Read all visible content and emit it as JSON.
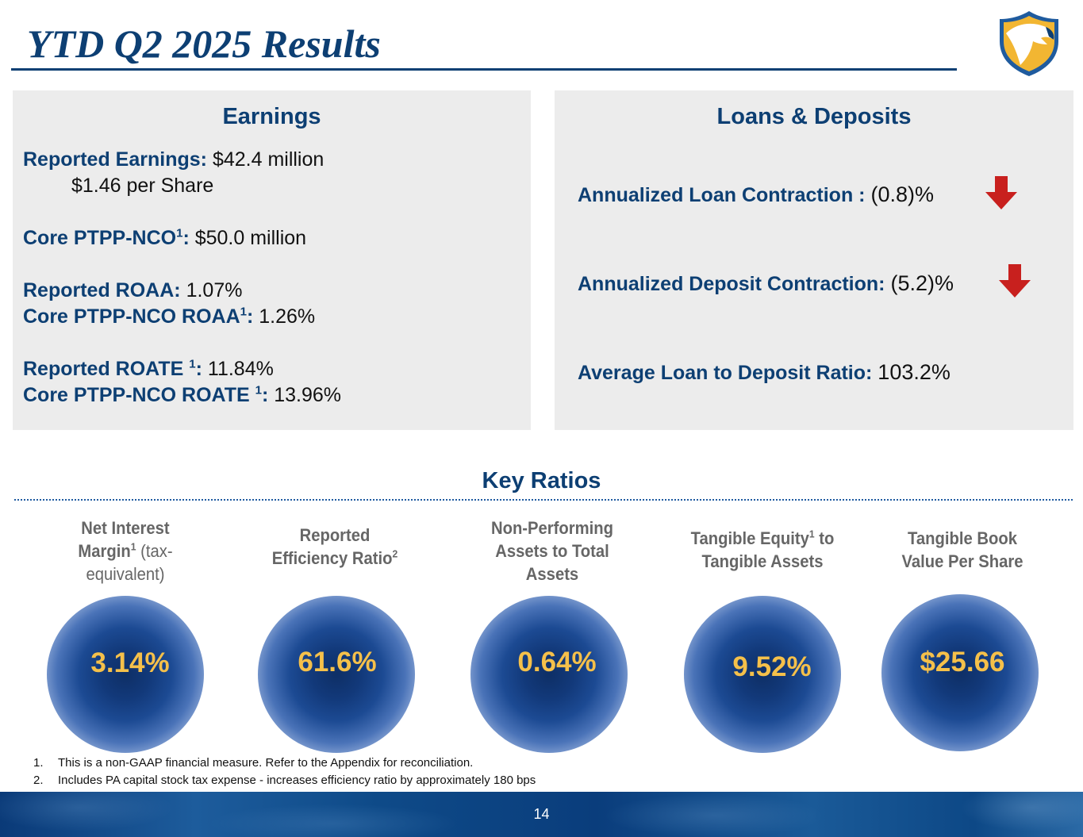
{
  "header": {
    "title": "YTD Q2 2025 Results"
  },
  "earnings": {
    "heading": "Earnings",
    "reported_earnings_label": "Reported Earnings:",
    "reported_earnings_value": "$42.4 million",
    "per_share": "$1.46 per Share",
    "core_ptpp_label": "Core PTPP-NCO",
    "core_ptpp_sup": "1",
    "core_ptpp_colon": ":",
    "core_ptpp_value": "$50.0 million",
    "reported_roaa_label": "Reported ROAA:",
    "reported_roaa_value": "1.07%",
    "core_roaa_label": "Core PTPP-NCO ROAA",
    "core_roaa_sup": "1",
    "core_roaa_colon": ":",
    "core_roaa_value": "1.26%",
    "reported_roate_label": "Reported ROATE ",
    "reported_roate_sup": "1",
    "reported_roate_colon": ":",
    "reported_roate_value": "11.84%",
    "core_roate_label": "Core PTPP-NCO ROATE ",
    "core_roate_sup": "1",
    "core_roate_colon": ":",
    "core_roate_value": "13.96%"
  },
  "loans_deposits": {
    "heading": "Loans & Deposits",
    "loan_label": "Annualized Loan Contraction :",
    "loan_value": "(0.8)%",
    "deposit_label": "Annualized Deposit Contraction:",
    "deposit_value": "(5.2)%",
    "ratio_label": "Average Loan to Deposit Ratio:",
    "ratio_value": "103.2%",
    "arrow_color": "#c8201e"
  },
  "key_ratios": {
    "heading": "Key Ratios",
    "items": [
      {
        "label_a": "Net Interest",
        "label_b": "Margin",
        "sup": "1",
        "label_c": " (tax-",
        "label_d": "equivalent)",
        "value": "3.14%"
      },
      {
        "label_a": "Reported",
        "label_b": "Efficiency Ratio",
        "sup": "2",
        "value": "61.6%"
      },
      {
        "label_a": "Non-Performing",
        "label_b": "Assets to Total",
        "label_c": "Assets",
        "value": "0.64%"
      },
      {
        "label_a": "Tangible Equity",
        "sup": "1",
        "label_a2": " to",
        "label_b": "Tangible Assets",
        "value": "9.52%"
      },
      {
        "label_a": "Tangible Book",
        "label_b": "Value Per Share",
        "value": "$25.66"
      }
    ]
  },
  "footnotes": [
    {
      "num": "1.",
      "text": "This is a non-GAAP financial measure. Refer to the Appendix for reconciliation."
    },
    {
      "num": "2.",
      "text": "Includes PA capital stock tax expense - increases efficiency ratio by approximately 180 bps"
    }
  ],
  "footer": {
    "page_number": "14"
  },
  "colors": {
    "brand_blue": "#0d3f73",
    "value_gold": "#f5c04a",
    "logo_gold": "#f2b632"
  }
}
